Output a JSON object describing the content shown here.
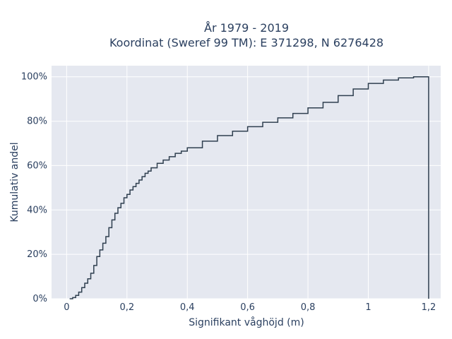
{
  "chart_data": {
    "type": "line",
    "title": [
      "År 1979 - 2019",
      "Koordinat (Sweref 99 TM): E 371298, N 6276428"
    ],
    "xlabel": "Signifikant våghöjd (m)",
    "ylabel": "Kumulativ andel",
    "xlim": [
      -0.05,
      1.24
    ],
    "ylim": [
      0,
      1.05
    ],
    "xticks": [
      0,
      0.2,
      0.4,
      0.6,
      0.8,
      1,
      1.2
    ],
    "xtick_labels": [
      "0",
      "0,2",
      "0,4",
      "0,6",
      "0,8",
      "1",
      "1,2"
    ],
    "yticks": [
      0,
      0.2,
      0.4,
      0.6,
      0.8,
      1.0
    ],
    "ytick_labels": [
      "0%",
      "20%",
      "40%",
      "60%",
      "80%",
      "100%"
    ],
    "grid": true,
    "step": true,
    "line_color": "#2f3f4f",
    "plot_bg": "#e5e8f0",
    "x": [
      0.01,
      0.02,
      0.03,
      0.04,
      0.05,
      0.06,
      0.07,
      0.08,
      0.09,
      0.1,
      0.11,
      0.12,
      0.13,
      0.14,
      0.15,
      0.16,
      0.17,
      0.18,
      0.19,
      0.2,
      0.21,
      0.22,
      0.23,
      0.24,
      0.25,
      0.26,
      0.27,
      0.28,
      0.3,
      0.32,
      0.34,
      0.36,
      0.38,
      0.4,
      0.45,
      0.5,
      0.55,
      0.6,
      0.65,
      0.7,
      0.75,
      0.8,
      0.85,
      0.9,
      0.95,
      1.0,
      1.05,
      1.1,
      1.15,
      1.18,
      1.2
    ],
    "y": [
      0.0,
      0.005,
      0.015,
      0.03,
      0.05,
      0.07,
      0.09,
      0.115,
      0.15,
      0.19,
      0.22,
      0.25,
      0.28,
      0.32,
      0.355,
      0.385,
      0.41,
      0.43,
      0.455,
      0.47,
      0.49,
      0.505,
      0.52,
      0.535,
      0.55,
      0.565,
      0.575,
      0.59,
      0.61,
      0.625,
      0.64,
      0.655,
      0.665,
      0.68,
      0.71,
      0.735,
      0.755,
      0.775,
      0.795,
      0.815,
      0.835,
      0.86,
      0.885,
      0.915,
      0.945,
      0.97,
      0.985,
      0.995,
      1.0,
      1.0,
      1.0
    ]
  }
}
